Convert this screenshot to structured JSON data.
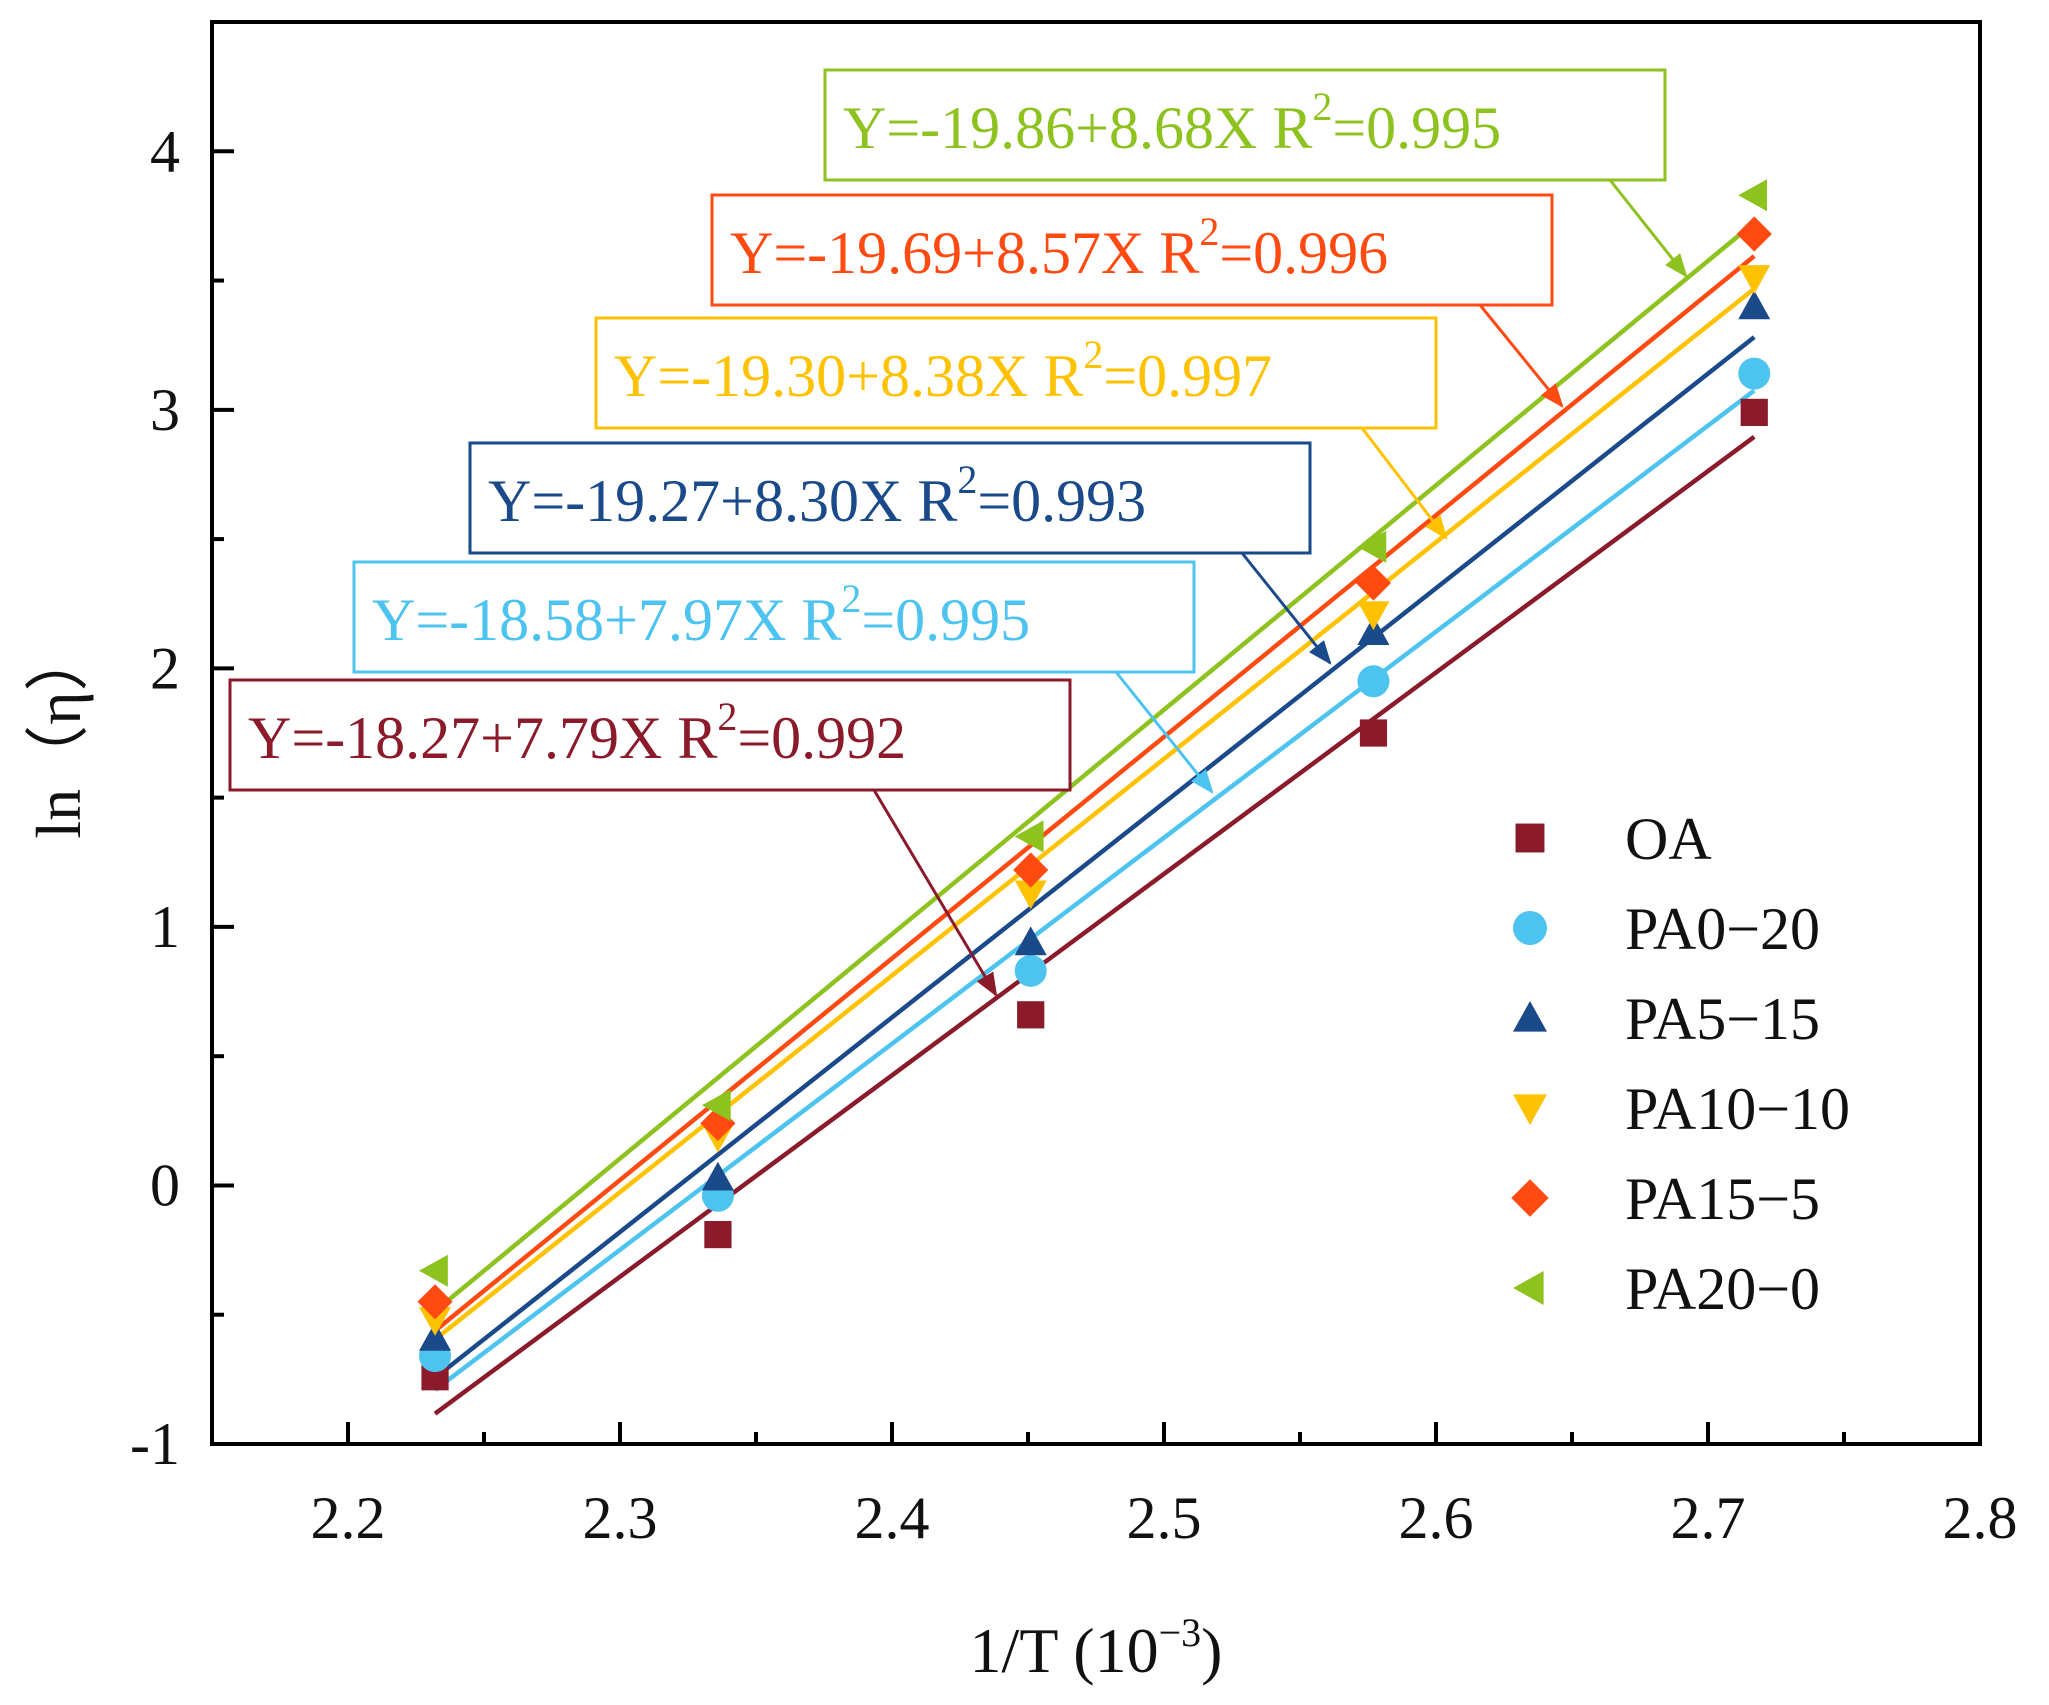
{
  "chart_data": {
    "type": "scatter",
    "xlabel": "1/T (10",
    "xlabel_exponent": "−3",
    "xlabel_close": ")",
    "ylabel": "ln（η）",
    "xlim": [
      2.15,
      2.8
    ],
    "ylim": [
      -1,
      4.5
    ],
    "xticks": [
      2.2,
      2.3,
      2.4,
      2.5,
      2.6,
      2.7,
      2.8
    ],
    "xtick_labels": [
      "2.2",
      "2.3",
      "2.4",
      "2.5",
      "2.6",
      "2.7",
      "2.8"
    ],
    "yticks": [
      -1,
      0,
      1,
      2,
      3,
      4
    ],
    "ytick_labels": [
      "-1",
      "0",
      "1",
      "2",
      "3",
      "4"
    ],
    "legend_position": "bottom-right",
    "x": [
      2.232,
      2.336,
      2.451,
      2.577,
      2.717
    ],
    "series": [
      {
        "name": "OA",
        "color": "#8B1A2B",
        "marker": "square",
        "values": [
          -0.74,
          -0.19,
          0.66,
          1.75,
          2.99
        ],
        "fit": {
          "intercept": -18.27,
          "slope": 7.79
        },
        "equation": "Y=-18.27+7.79X R",
        "r2": "=0.992"
      },
      {
        "name": "PA0−20",
        "color": "#4DC3F0",
        "marker": "circle",
        "values": [
          -0.66,
          -0.04,
          0.83,
          1.95,
          3.14
        ],
        "fit": {
          "intercept": -18.58,
          "slope": 7.97
        },
        "equation": "Y=-18.58+7.97X R",
        "r2": "=0.995"
      },
      {
        "name": "PA5−15",
        "color": "#1A4A8A",
        "marker": "triangle-up",
        "values": [
          -0.59,
          0.03,
          0.94,
          2.14,
          3.4
        ],
        "fit": {
          "intercept": -19.27,
          "slope": 8.3
        },
        "equation": "Y=-19.27+8.30X R",
        "r2": "=0.993"
      },
      {
        "name": "PA10−10",
        "color": "#FFC200",
        "marker": "triangle-down",
        "values": [
          -0.52,
          0.19,
          1.13,
          2.21,
          3.51
        ],
        "fit": {
          "intercept": -19.3,
          "slope": 8.38
        },
        "equation": "Y=-19.30+8.38X R",
        "r2": "=0.997"
      },
      {
        "name": "PA15−5",
        "color": "#FF4A12",
        "marker": "diamond",
        "values": [
          -0.45,
          0.24,
          1.22,
          2.33,
          3.68
        ],
        "fit": {
          "intercept": -19.69,
          "slope": 8.57
        },
        "equation": "Y=-19.69+8.57X R",
        "r2": "=0.996"
      },
      {
        "name": "PA20−0",
        "color": "#8DC21F",
        "marker": "triangle-left",
        "values": [
          -0.33,
          0.31,
          1.35,
          2.47,
          3.83
        ],
        "fit": {
          "intercept": -19.86,
          "slope": 8.68
        },
        "equation": "Y=-19.86+8.68X R",
        "r2": "=0.995"
      }
    ],
    "r2_superscript": "2"
  }
}
